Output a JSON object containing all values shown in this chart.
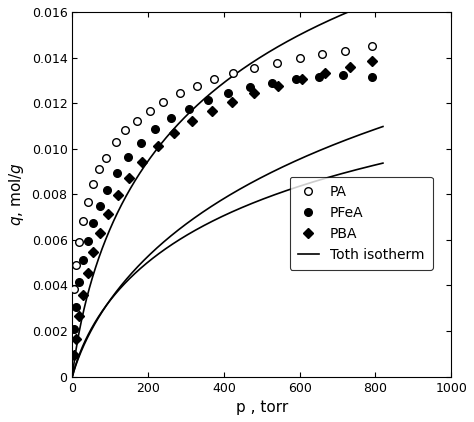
{
  "PA_data": {
    "p": [
      5,
      10,
      18,
      28,
      40,
      55,
      70,
      90,
      115,
      140,
      170,
      205,
      240,
      285,
      330,
      375,
      425,
      480,
      540,
      600,
      660,
      720,
      790
    ],
    "q": [
      0.00385,
      0.0049,
      0.0059,
      0.00685,
      0.00765,
      0.00845,
      0.0091,
      0.0096,
      0.0103,
      0.0108,
      0.0112,
      0.01165,
      0.01205,
      0.01245,
      0.01275,
      0.01305,
      0.0133,
      0.01355,
      0.01375,
      0.014,
      0.01415,
      0.0143,
      0.0145
    ]
  },
  "PFeA_data": {
    "p": [
      5,
      10,
      18,
      28,
      40,
      55,
      72,
      92,
      118,
      148,
      180,
      218,
      260,
      308,
      358,
      412,
      468,
      528,
      590,
      650,
      715,
      790
    ],
    "q": [
      0.0021,
      0.00305,
      0.00415,
      0.0051,
      0.00595,
      0.00675,
      0.0075,
      0.0082,
      0.00895,
      0.00965,
      0.01025,
      0.01085,
      0.01135,
      0.01175,
      0.01215,
      0.01245,
      0.0127,
      0.0129,
      0.01305,
      0.01315,
      0.01325,
      0.01315
    ]
  },
  "PBA_data": {
    "p": [
      5,
      10,
      18,
      28,
      40,
      55,
      72,
      95,
      120,
      150,
      185,
      225,
      268,
      315,
      368,
      422,
      480,
      542,
      605,
      668,
      732,
      790
    ],
    "q": [
      0.00095,
      0.00165,
      0.00265,
      0.0036,
      0.00455,
      0.00545,
      0.0063,
      0.00715,
      0.00795,
      0.0087,
      0.0094,
      0.0101,
      0.0107,
      0.0112,
      0.01165,
      0.01205,
      0.01245,
      0.01275,
      0.01305,
      0.0133,
      0.0136,
      0.01385
    ]
  },
  "toth_PA": {
    "qm": 0.032,
    "b": 0.0052,
    "t": 0.56
  },
  "toth_PFeA": {
    "qm": 0.02,
    "b": 0.0038,
    "t": 0.56
  },
  "toth_PBA": {
    "qm": 0.032,
    "b": 0.00215,
    "t": 0.52
  },
  "xlim": [
    0,
    1000
  ],
  "ylim": [
    0,
    0.016
  ],
  "xlabel": "p , torr",
  "ylabel": "$q$, mol/$g$",
  "legend_labels": [
    "PA",
    "PFeA",
    "PBA",
    "Toth isotherm"
  ],
  "ytick_labels": [
    "0",
    "0.002",
    "0.004",
    "0.006",
    "0.008",
    "0.010",
    "0.012",
    "0.014",
    "0.016"
  ],
  "figure_width": 4.74,
  "figure_height": 4.22,
  "dpi": 100
}
